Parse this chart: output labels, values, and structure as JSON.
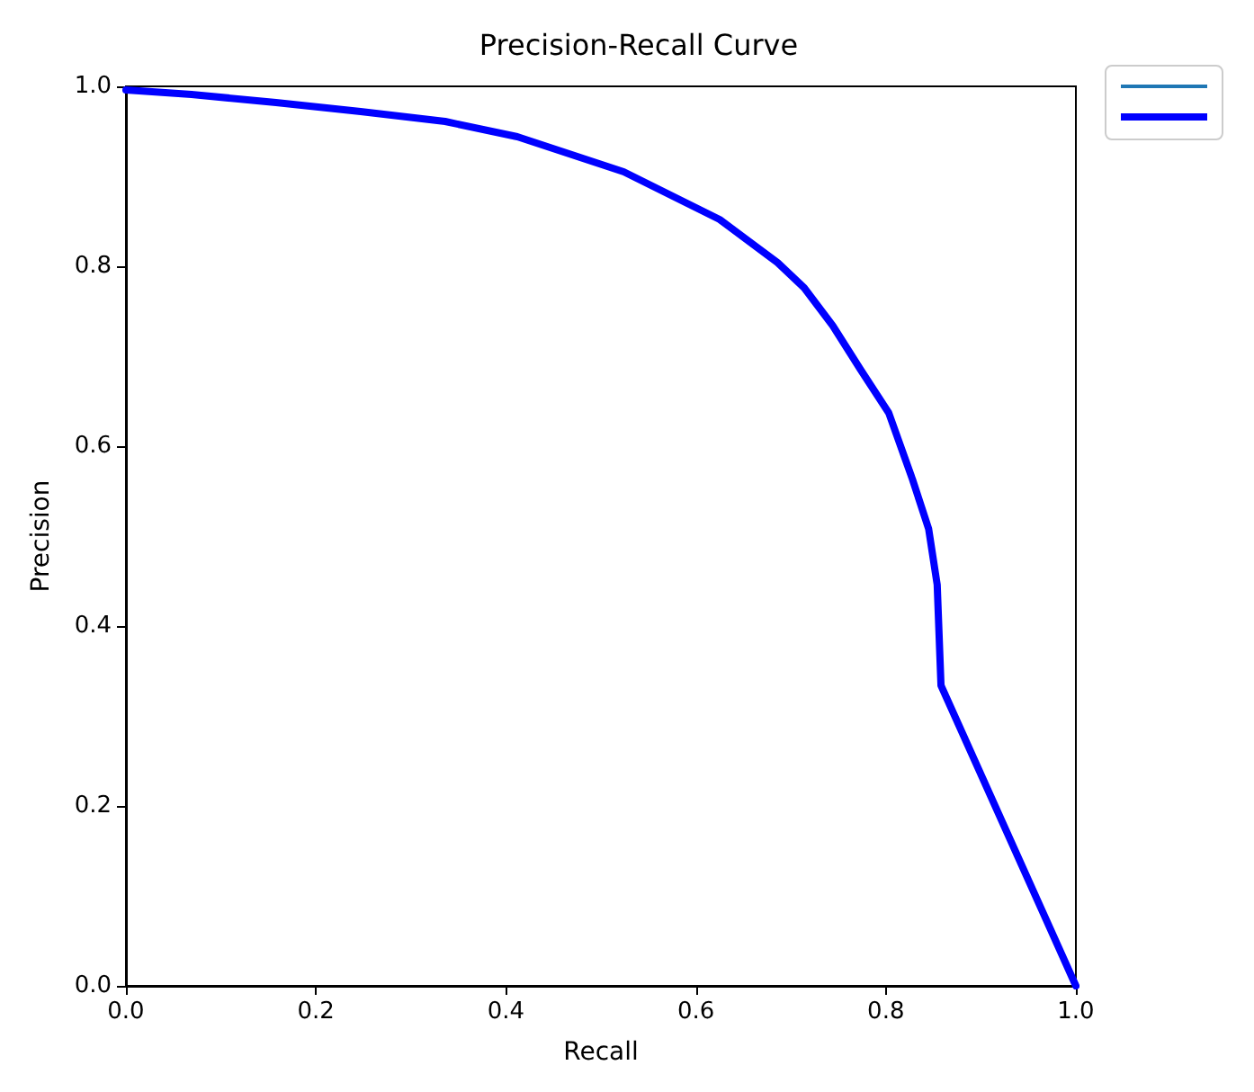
{
  "chart_data": {
    "type": "line",
    "title": "Precision-Recall Curve",
    "xlabel": "Recall",
    "ylabel": "Precision",
    "xlim": [
      0,
      1
    ],
    "ylim": [
      0,
      1
    ],
    "xticks": [
      {
        "value": 0,
        "label": "0.0"
      },
      {
        "value": 0.2,
        "label": "0.2"
      },
      {
        "value": 0.4,
        "label": "0.4"
      },
      {
        "value": 0.6,
        "label": "0.6"
      },
      {
        "value": 0.8,
        "label": "0.8"
      },
      {
        "value": 1,
        "label": "1.0"
      }
    ],
    "yticks": [
      {
        "value": 0,
        "label": "0.0"
      },
      {
        "value": 0.2,
        "label": "0.2"
      },
      {
        "value": 0.4,
        "label": "0.4"
      },
      {
        "value": 0.6,
        "label": "0.6"
      },
      {
        "value": 0.8,
        "label": "0.8"
      },
      {
        "value": 1,
        "label": "1.0"
      }
    ],
    "grid": false,
    "marker": "none",
    "line_style": "solid",
    "x": [
      0,
      0.069,
      0.158,
      0.247,
      0.336,
      0.412,
      0.524,
      0.625,
      0.686,
      0.714,
      0.744,
      0.774,
      0.803,
      0.828,
      0.845,
      0.854,
      0.858,
      1.0
    ],
    "series": [
      {
        "color": "#1f77b4",
        "values": [
          null,
          null,
          null,
          null,
          null,
          null,
          null,
          null,
          null,
          null,
          null,
          null,
          null,
          null,
          null,
          null,
          null,
          null
        ]
      },
      {
        "color": "#0000ff",
        "values": [
          0.996,
          0.991,
          0.982,
          0.972,
          0.961,
          0.944,
          0.905,
          0.852,
          0.804,
          0.776,
          0.734,
          0.684,
          0.637,
          0.563,
          0.508,
          0.446,
          0.334,
          0.0
        ]
      }
    ]
  }
}
